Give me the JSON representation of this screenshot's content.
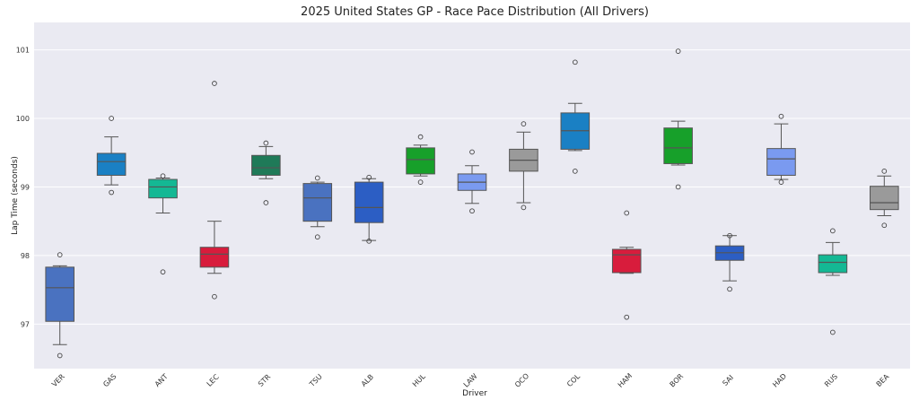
{
  "chart_data": {
    "type": "box",
    "title": "2025 United States GP - Race Pace Distribution (All Drivers)",
    "xlabel": "Driver",
    "ylabel": "Lap Time (seconds)",
    "ylim": [
      96.35,
      101.4
    ],
    "yticks": [
      97,
      98,
      99,
      100,
      101
    ],
    "grid": true,
    "colors": {
      "background": "#eaeaf2",
      "grid": "#ffffff",
      "whisker": "#555555"
    },
    "categories": [
      "VER",
      "GAS",
      "ANT",
      "LEC",
      "STR",
      "TSU",
      "ALB",
      "HUL",
      "LAW",
      "OCO",
      "COL",
      "HAM",
      "BOR",
      "SAI",
      "HAD",
      "RUS",
      "BEA"
    ],
    "boxes": [
      {
        "driver": "VER",
        "color": "#4a72c0",
        "whislo": 96.7,
        "q1": 97.04,
        "med": 97.53,
        "q3": 97.83,
        "whishi": 97.85,
        "fliers": [
          98.01,
          96.54
        ]
      },
      {
        "driver": "GAS",
        "color": "#1a80c4",
        "whislo": 99.03,
        "q1": 99.17,
        "med": 99.37,
        "q3": 99.49,
        "whishi": 99.73,
        "fliers": [
          100.0,
          98.92
        ]
      },
      {
        "driver": "ANT",
        "color": "#14b894",
        "whislo": 98.62,
        "q1": 98.84,
        "med": 99.0,
        "q3": 99.11,
        "whishi": 99.13,
        "fliers": [
          99.16,
          97.76
        ]
      },
      {
        "driver": "LEC",
        "color": "#d81c3c",
        "whislo": 97.74,
        "q1": 97.83,
        "med": 98.02,
        "q3": 98.12,
        "whishi": 98.5,
        "fliers": [
          100.51,
          97.4
        ]
      },
      {
        "driver": "STR",
        "color": "#1f7a58",
        "whislo": 99.12,
        "q1": 99.17,
        "med": 99.28,
        "q3": 99.46,
        "whishi": 99.59,
        "fliers": [
          99.64,
          98.77
        ]
      },
      {
        "driver": "TSU",
        "color": "#4a72c0",
        "whislo": 98.42,
        "q1": 98.5,
        "med": 98.84,
        "q3": 99.05,
        "whishi": 99.07,
        "fliers": [
          99.13,
          98.27
        ]
      },
      {
        "driver": "ALB",
        "color": "#2c5ec4",
        "whislo": 98.22,
        "q1": 98.48,
        "med": 98.7,
        "q3": 99.07,
        "whishi": 99.12,
        "fliers": [
          99.14,
          98.21
        ]
      },
      {
        "driver": "HUL",
        "color": "#17a02a",
        "whislo": 99.16,
        "q1": 99.19,
        "med": 99.4,
        "q3": 99.57,
        "whishi": 99.61,
        "fliers": [
          99.73,
          99.07
        ]
      },
      {
        "driver": "LAW",
        "color": "#7a9af0",
        "whislo": 98.76,
        "q1": 98.95,
        "med": 99.07,
        "q3": 99.19,
        "whishi": 99.31,
        "fliers": [
          99.51,
          98.65
        ]
      },
      {
        "driver": "OCO",
        "color": "#9a9a9a",
        "whislo": 98.77,
        "q1": 99.23,
        "med": 99.39,
        "q3": 99.55,
        "whishi": 99.8,
        "fliers": [
          99.92,
          98.7
        ]
      },
      {
        "driver": "COL",
        "color": "#1a80c4",
        "whislo": 99.53,
        "q1": 99.55,
        "med": 99.82,
        "q3": 100.08,
        "whishi": 100.22,
        "fliers": [
          100.82,
          99.23
        ]
      },
      {
        "driver": "HAM",
        "color": "#d81c3c",
        "whislo": 97.74,
        "q1": 97.75,
        "med": 98.01,
        "q3": 98.09,
        "whishi": 98.12,
        "fliers": [
          98.62,
          97.1
        ]
      },
      {
        "driver": "BOR",
        "color": "#17a02a",
        "whislo": 99.32,
        "q1": 99.34,
        "med": 99.57,
        "q3": 99.86,
        "whishi": 99.96,
        "fliers": [
          100.98,
          99.0
        ]
      },
      {
        "driver": "SAI",
        "color": "#2c5ec4",
        "whislo": 97.63,
        "q1": 97.93,
        "med": 98.04,
        "q3": 98.14,
        "whishi": 98.29,
        "fliers": [
          98.29,
          97.51
        ]
      },
      {
        "driver": "HAD",
        "color": "#7a9af0",
        "whislo": 99.11,
        "q1": 99.17,
        "med": 99.41,
        "q3": 99.56,
        "whishi": 99.92,
        "fliers": [
          100.03,
          99.07
        ]
      },
      {
        "driver": "RUS",
        "color": "#14b894",
        "whislo": 97.71,
        "q1": 97.75,
        "med": 97.9,
        "q3": 98.01,
        "whishi": 98.19,
        "fliers": [
          98.36,
          96.88
        ]
      },
      {
        "driver": "BEA",
        "color": "#9a9a9a",
        "whislo": 98.58,
        "q1": 98.67,
        "med": 98.77,
        "q3": 99.01,
        "whishi": 99.16,
        "fliers": [
          99.23,
          98.44
        ]
      }
    ]
  }
}
